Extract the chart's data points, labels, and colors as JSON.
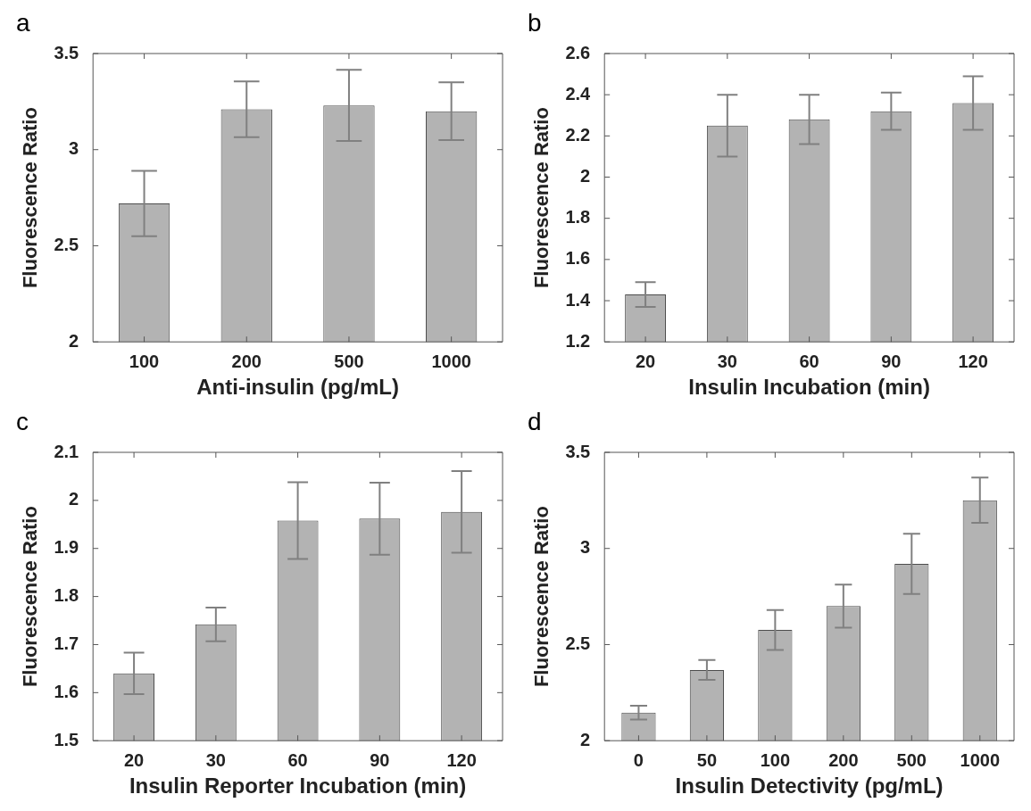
{
  "chart_data": [
    {
      "type": "bar",
      "title": "a",
      "categories": [
        "100",
        "200",
        "500",
        "1000"
      ],
      "values": [
        2.72,
        3.21,
        3.23,
        3.2
      ],
      "errors": [
        0.17,
        0.145,
        0.185,
        0.15
      ],
      "color": "#b3b3b3",
      "xlabel": "Anti-insulin (pg/mL)",
      "ylabel": "Fluorescence Ratio",
      "ylim": [
        2,
        3.5
      ],
      "yticks": [
        2,
        2.5,
        3,
        3.5
      ]
    },
    {
      "type": "bar",
      "title": "b",
      "categories": [
        "20",
        "30",
        "60",
        "90",
        "120"
      ],
      "values": [
        1.43,
        2.25,
        2.28,
        2.32,
        2.36
      ],
      "errors": [
        0.06,
        0.15,
        0.12,
        0.09,
        0.13
      ],
      "color": "#b3b3b3",
      "xlabel": "Insulin Incubation (min)",
      "ylabel": "Fluorescence Ratio",
      "ylim": [
        1.2,
        2.6
      ],
      "yticks": [
        1.2,
        1.4,
        1.6,
        1.8,
        2,
        2.2,
        2.4,
        2.6
      ]
    },
    {
      "type": "bar",
      "title": "c",
      "categories": [
        "20",
        "30",
        "60",
        "90",
        "120"
      ],
      "values": [
        1.64,
        1.742,
        1.958,
        1.962,
        1.976
      ],
      "errors": [
        0.043,
        0.035,
        0.08,
        0.075,
        0.085
      ],
      "color": "#b3b3b3",
      "xlabel": "Insulin Reporter Incubation (min)",
      "ylabel": "Fluorescence Ratio",
      "ylim": [
        1.5,
        2.1
      ],
      "yticks": [
        1.5,
        1.6,
        1.7,
        1.8,
        1.9,
        2,
        2.1
      ]
    },
    {
      "type": "bar",
      "title": "d",
      "categories": [
        "0",
        "50",
        "100",
        "200",
        "500",
        "1000"
      ],
      "values": [
        2.146,
        2.368,
        2.576,
        2.7,
        2.92,
        3.251
      ],
      "errors": [
        0.036,
        0.052,
        0.104,
        0.112,
        0.157,
        0.118
      ],
      "color": "#b3b3b3",
      "xlabel": "Insulin Detectivity (pg/mL)",
      "ylabel": "Fluorescence Ratio",
      "ylim": [
        2,
        3.5
      ],
      "yticks": [
        2,
        2.5,
        3,
        3.5
      ]
    }
  ]
}
